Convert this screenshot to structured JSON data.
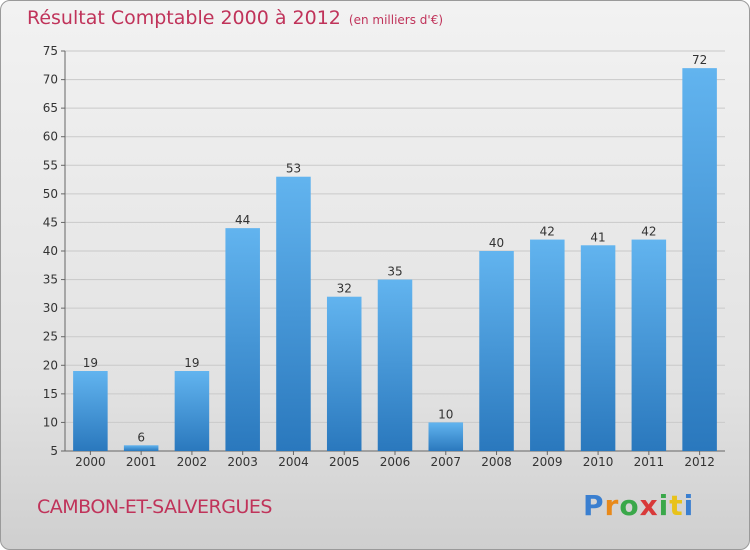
{
  "chart_data": {
    "type": "bar",
    "title": "Résultat Comptable 2000 à 2012",
    "subtitle": "(en milliers d'€)",
    "categories": [
      "2000",
      "2001",
      "2002",
      "2003",
      "2004",
      "2005",
      "2006",
      "2007",
      "2008",
      "2009",
      "2010",
      "2011",
      "2012"
    ],
    "values": [
      19,
      6,
      19,
      44,
      53,
      32,
      35,
      10,
      40,
      42,
      41,
      42,
      72
    ],
    "ylim": [
      5,
      75
    ],
    "yticks": [
      5,
      10,
      15,
      20,
      25,
      30,
      35,
      40,
      45,
      50,
      55,
      60,
      65,
      70,
      75
    ],
    "grid": true,
    "xlabel": "",
    "ylabel": ""
  },
  "footer": {
    "city": "CAMBON-ET-SALVERGUES"
  },
  "logo": {
    "letters": [
      "P",
      "r",
      "o",
      "x",
      "i",
      "t",
      "i"
    ],
    "colors": [
      "#3a7fd0",
      "#e8891a",
      "#3aa84a",
      "#d83a3a",
      "#3aa84a",
      "#e8c21a",
      "#3a7fd0"
    ]
  },
  "colors": {
    "bar_top": "#62b4ef",
    "bar_bottom": "#2a78bd",
    "grid": "#c9c9c9",
    "accent": "#c0335a"
  }
}
